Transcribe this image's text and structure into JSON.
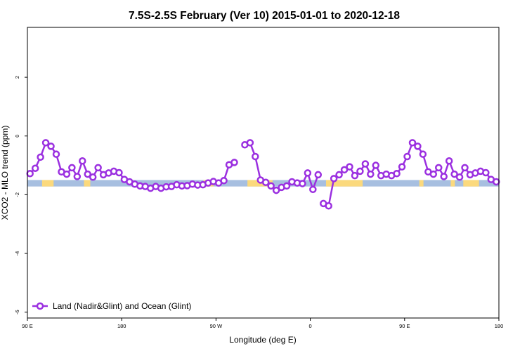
{
  "chart_data": {
    "type": "line",
    "title": "7.5S-2.5S February (Ver 10)   2015-01-01 to 2020-12-18",
    "xlabel": "Longitude (deg E)",
    "ylabel": "XCO2 - MLO trend (ppm)",
    "xlim": [
      90,
      540
    ],
    "ylim": [
      -6.2,
      3.7
    ],
    "x_ticks": [
      {
        "value": 90,
        "label": "90 E"
      },
      {
        "value": 180,
        "label": "180"
      },
      {
        "value": 270,
        "label": "90 W"
      },
      {
        "value": 360,
        "label": "0"
      },
      {
        "value": 450,
        "label": "90 E"
      },
      {
        "value": 540,
        "label": "180"
      }
    ],
    "y_ticks": [
      {
        "value": 2,
        "label": "2"
      },
      {
        "value": 0,
        "label": "0"
      },
      {
        "value": -2,
        "label": "-2"
      },
      {
        "value": -4,
        "label": "-4"
      },
      {
        "value": -6,
        "label": "-6"
      }
    ],
    "surface_band": {
      "y_range": [
        -1.72,
        -1.5
      ],
      "ocean_color": "#a7bfe0",
      "land_color": "#fbd97d",
      "land_segments": [
        [
          104,
          115
        ],
        [
          144,
          150
        ],
        [
          258,
          268
        ],
        [
          300,
          324
        ],
        [
          375,
          410
        ],
        [
          464,
          468
        ],
        [
          494,
          498
        ],
        [
          506,
          521
        ]
      ]
    },
    "series": [
      {
        "name": "Land (Nadir&Glint) and Ocean (Glint)",
        "color": "#9b30e0",
        "segments": [
          {
            "x": [
              92.5,
              97.5,
              102.5,
              107.5,
              112.5,
              117.5,
              122.5,
              127.5,
              132.5,
              137.5,
              142.5,
              147.5,
              152.5,
              157.5,
              162.5,
              167.5,
              172.5,
              177.5,
              182.5,
              187.5,
              192.5,
              197.5,
              202.5,
              207.5,
              212.5,
              217.5,
              222.5,
              227.5,
              232.5,
              237.5,
              242.5,
              247.5,
              252.5,
              257.5,
              262.5,
              267.5,
              272.5,
              277.5,
              282.5,
              287.5
            ],
            "y": [
              -1.28,
              -1.1,
              -0.72,
              -0.23,
              -0.35,
              -0.62,
              -1.22,
              -1.3,
              -1.08,
              -1.38,
              -0.85,
              -1.3,
              -1.4,
              -1.08,
              -1.32,
              -1.26,
              -1.2,
              -1.25,
              -1.48,
              -1.56,
              -1.64,
              -1.7,
              -1.72,
              -1.78,
              -1.72,
              -1.78,
              -1.73,
              -1.72,
              -1.66,
              -1.7,
              -1.69,
              -1.64,
              -1.67,
              -1.66,
              -1.6,
              -1.55,
              -1.6,
              -1.52,
              -0.98,
              -0.9
            ]
          },
          {
            "x": [
              297.5,
              302.5,
              307.5,
              312.5,
              317.5,
              322.5,
              327.5,
              332.5,
              337.5,
              342.5,
              347.5,
              352.5,
              357.5,
              362.5,
              367.5
            ],
            "y": [
              -0.3,
              -0.23,
              -0.7,
              -1.5,
              -1.58,
              -1.7,
              -1.85,
              -1.75,
              -1.7,
              -1.56,
              -1.6,
              -1.62,
              -1.26,
              -1.82,
              -1.32
            ]
          },
          {
            "x": [
              372.5,
              377.5,
              382.5,
              387.5,
              392.5,
              397.5,
              402.5,
              407.5,
              412.5,
              417.5,
              422.5,
              427.5,
              432.5,
              437.5,
              442.5,
              447.5,
              452.5,
              457.5,
              462.5,
              467.5,
              472.5,
              477.5,
              482.5,
              487.5,
              492.5,
              497.5,
              502.5,
              507.5,
              512.5,
              517.5,
              522.5,
              527.5,
              532.5,
              537.5
            ],
            "y": [
              -2.3,
              -2.38,
              -1.45,
              -1.32,
              -1.15,
              -1.05,
              -1.35,
              -1.2,
              -0.95,
              -1.3,
              -1.0,
              -1.35,
              -1.3,
              -1.35,
              -1.28,
              -1.05,
              -0.7,
              -0.23,
              -0.35,
              -0.62,
              -1.22,
              -1.3,
              -1.08,
              -1.38,
              -0.85,
              -1.3,
              -1.4,
              -1.08,
              -1.32,
              -1.26,
              -1.2,
              -1.25,
              -1.48,
              -1.56
            ]
          }
        ]
      }
    ],
    "legend": {
      "position": "bottom-left"
    },
    "grid": false
  }
}
